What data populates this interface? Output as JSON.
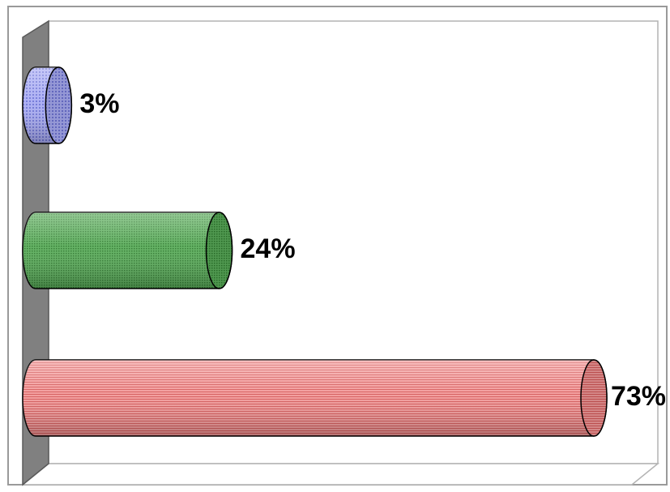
{
  "chart_data": {
    "type": "bar",
    "orientation": "horizontal",
    "style": "3d-cylinder",
    "title": "",
    "xlabel": "",
    "ylabel": "",
    "xlim": [
      0,
      73
    ],
    "grid": false,
    "legend": "none",
    "series": [
      {
        "values": [
          3,
          24,
          73
        ],
        "data_labels": [
          "3%",
          "24%",
          "73%"
        ],
        "colors": [
          "#9a9ef0",
          "#4ea04e",
          "#ef7f7f"
        ]
      }
    ]
  }
}
